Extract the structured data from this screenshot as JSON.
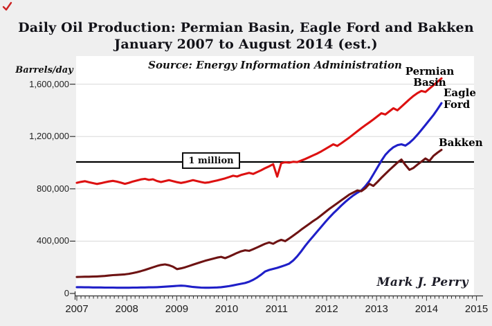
{
  "page": {
    "title_line1": "Daily Oil Production: Permian Basin, Eagle Ford and Bakken",
    "title_line2": "January 2007 to August 2014 (est.)",
    "source_note": "Source: Energy Information Administration",
    "y_axis_unit_label": "Barrels/day",
    "signature": "Mark J. Perry",
    "million_line_label": "1 million"
  },
  "series_labels": {
    "permian": "Permian Basin",
    "eagle_line1": "Eagle",
    "eagle_line2": "Ford",
    "bakken": "Bakken"
  },
  "colors": {
    "permian": "#dd1111",
    "eagle_ford": "#1f1fc8",
    "bakken": "#6e1313",
    "million_line": "#000000",
    "grid": "#d8d8d8",
    "axis": "#333333",
    "plot_bg": "#ffffff",
    "page_bg": "#efefef",
    "corner_mark": "#cc2222"
  },
  "chart_data": {
    "type": "line",
    "title": "Daily Oil Production: Permian Basin, Eagle Ford and Bakken, January 2007 to August 2014 (est.)",
    "x_start": "2007-01",
    "x_end": "2014-08",
    "x_tick_labels": [
      "2007",
      "2008",
      "2009",
      "2010",
      "2011",
      "2012",
      "2013",
      "2014",
      "2015"
    ],
    "y_tick_labels": [
      "0",
      "400,000",
      "800,000",
      "1,200,000",
      "1,600,000"
    ],
    "y_tick_values": [
      0,
      400,
      800,
      1200,
      1600
    ],
    "ylim": [
      0,
      1600000
    ],
    "value_units": "barrels per day",
    "value_scale": 1000,
    "grid": "horizontal-only",
    "legend_position": "end-of-line labels",
    "annotation_line": {
      "value": 1000000,
      "label": "1 million"
    },
    "series": [
      {
        "name": "Permian Basin",
        "color_key": "permian",
        "values": [
          846,
          853,
          858,
          851,
          844,
          837,
          843,
          850,
          856,
          861,
          855,
          847,
          838,
          846,
          856,
          864,
          872,
          876,
          868,
          873,
          860,
          852,
          859,
          866,
          858,
          851,
          845,
          851,
          858,
          866,
          859,
          852,
          846,
          850,
          857,
          864,
          872,
          880,
          890,
          900,
          894,
          906,
          914,
          922,
          914,
          928,
          942,
          958,
          972,
          988,
          893,
          996,
          1003,
          1000,
          1007,
          1004,
          1016,
          1028,
          1042,
          1056,
          1070,
          1086,
          1104,
          1122,
          1140,
          1128,
          1148,
          1170,
          1192,
          1216,
          1240,
          1264,
          1286,
          1308,
          1330,
          1354,
          1378,
          1368,
          1392,
          1416,
          1400,
          1428,
          1456,
          1484,
          1510,
          1532,
          1548,
          1540,
          1566,
          1592,
          1618,
          1644
        ]
      },
      {
        "name": "Eagle Ford",
        "color_key": "eagle_ford",
        "values": [
          48,
          48,
          47,
          47,
          46,
          46,
          46,
          45,
          45,
          45,
          44,
          44,
          44,
          44,
          45,
          45,
          46,
          46,
          47,
          47,
          48,
          50,
          52,
          54,
          56,
          58,
          60,
          58,
          54,
          50,
          47,
          45,
          44,
          44,
          45,
          46,
          48,
          52,
          56,
          62,
          68,
          74,
          80,
          90,
          104,
          122,
          144,
          168,
          180,
          188,
          196,
          206,
          216,
          228,
          252,
          284,
          322,
          364,
          402,
          438,
          474,
          510,
          546,
          580,
          612,
          642,
          672,
          700,
          726,
          750,
          770,
          788,
          820,
          860,
          910,
          962,
          1014,
          1060,
          1092,
          1118,
          1134,
          1140,
          1130,
          1152,
          1180,
          1214,
          1250,
          1288,
          1326,
          1364,
          1408,
          1455
        ]
      },
      {
        "name": "Bakken",
        "color_key": "bakken",
        "values": [
          126,
          127,
          128,
          128,
          129,
          130,
          132,
          134,
          137,
          140,
          142,
          144,
          146,
          150,
          156,
          163,
          171,
          180,
          190,
          200,
          210,
          218,
          222,
          216,
          205,
          186,
          192,
          200,
          210,
          220,
          230,
          240,
          250,
          258,
          266,
          274,
          280,
          270,
          282,
          296,
          310,
          322,
          330,
          326,
          338,
          352,
          366,
          380,
          390,
          380,
          398,
          410,
          400,
          420,
          442,
          464,
          488,
          510,
          532,
          554,
          574,
          598,
          622,
          646,
          668,
          690,
          712,
          734,
          756,
          772,
          788,
          782,
          804,
          838,
          822,
          852,
          884,
          914,
          944,
          972,
          1000,
          1024,
          982,
          945,
          960,
          985,
          1008,
          1032,
          1014,
          1052,
          1076,
          1098
        ]
      }
    ]
  }
}
